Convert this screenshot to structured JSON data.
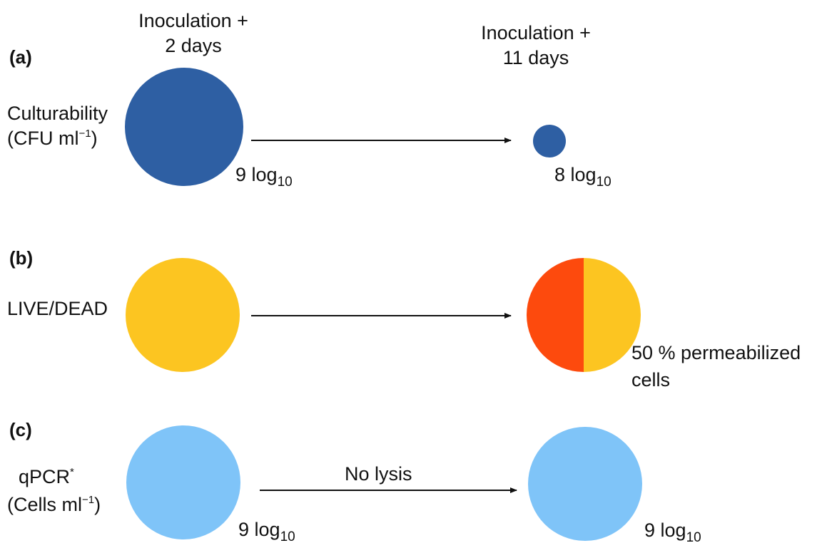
{
  "columns": {
    "left_header_line1": "Inoculation +",
    "left_header_line2": "2 days",
    "right_header_line1": "Inoculation +",
    "right_header_line2": "11 days"
  },
  "rows": [
    {
      "panel": "(a)",
      "label_line1": "Culturability",
      "label_line2_main": "(CFU ml",
      "label_line2_sup": "−1",
      "label_line2_end": ")",
      "left_value_main": "9 log",
      "left_value_sub": "10",
      "right_value_main": "8 log",
      "right_value_sub": "10",
      "left_color": "#2e5fa3",
      "right_color": "#2e5fa3"
    },
    {
      "panel": "(b)",
      "label_line1": "LIVE/DEAD",
      "right_note_line1": "50 % permeabilized",
      "right_note_line2": "cells",
      "permeabilized_fraction": 0.5,
      "left_color": "#fcc521",
      "right_color_live": "#fcc521",
      "right_color_dead": "#fd4a0d"
    },
    {
      "panel": "(c)",
      "label_line1_main": "qPCR",
      "label_line1_sup": "*",
      "label_line2_main": "(Cells ml",
      "label_line2_sup": "−1",
      "label_line2_end": ")",
      "arrow_label": "No lysis",
      "left_value_main": "9 log",
      "left_value_sub": "10",
      "right_value_main": "9 log",
      "right_value_sub": "10",
      "left_color": "#7fc4f8",
      "right_color": "#7fc4f8"
    }
  ]
}
